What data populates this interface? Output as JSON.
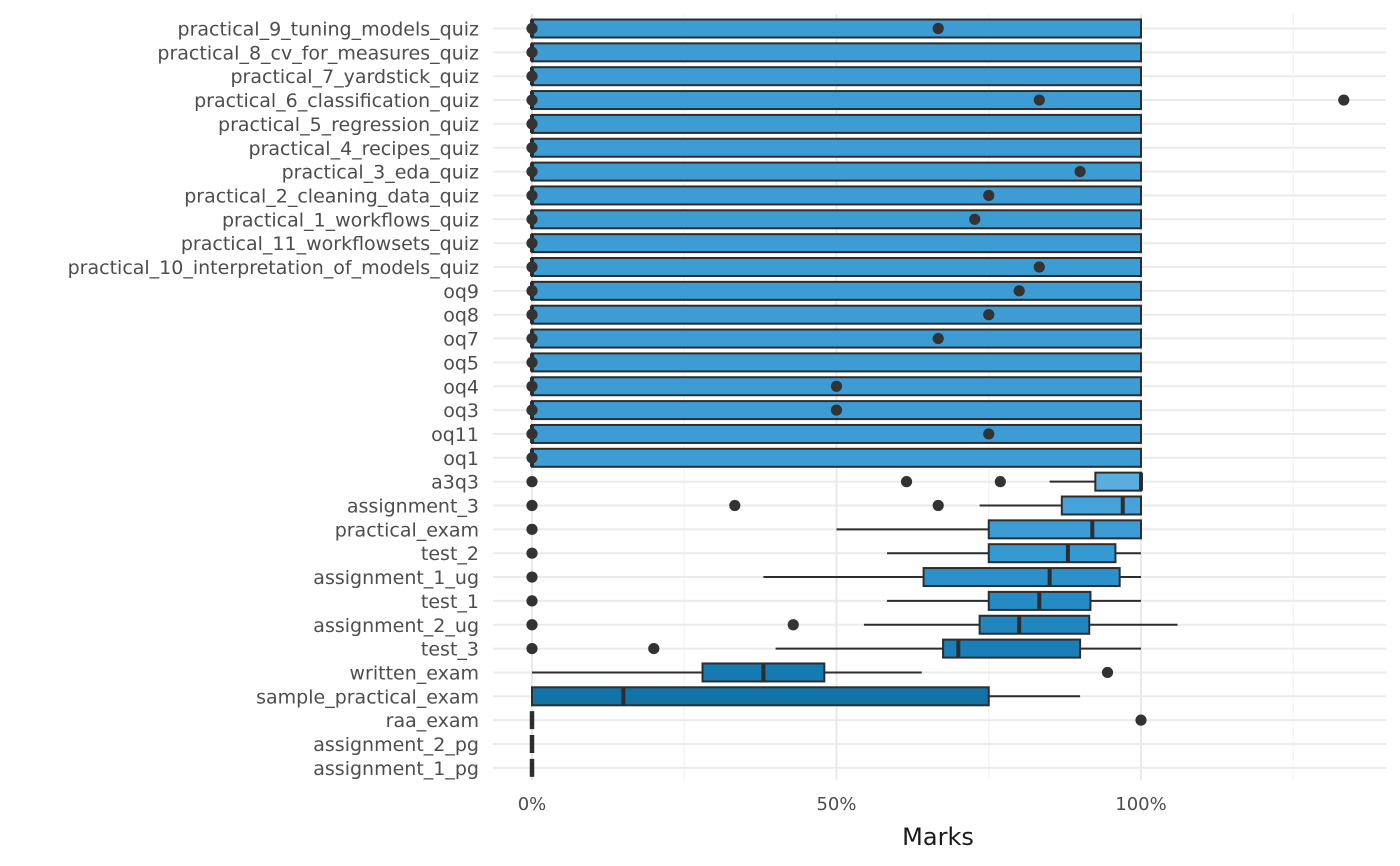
{
  "chart_data": {
    "type": "boxplot",
    "orientation": "horizontal",
    "xlabel": "Marks",
    "ylabel": "",
    "xlim": [
      -0.05,
      1.4
    ],
    "x_ticks": [
      0,
      0.5,
      1.0
    ],
    "x_tick_labels": [
      "0%",
      "50%",
      "100%"
    ],
    "grid": true,
    "colors": {
      "box_border": "#2d2d2d",
      "point": "#333333",
      "grid": "#ebebeb",
      "box_light": "#5dade2",
      "box_dark": "#1273a8"
    },
    "categories": [
      {
        "name": "practical_9_tuning_models_quiz",
        "box": [
          0,
          0,
          0,
          1.0,
          1.0
        ],
        "outliers": [
          0,
          0.667
        ]
      },
      {
        "name": "practical_8_cv_for_measures_quiz",
        "box": [
          0,
          0,
          0,
          1.0,
          1.0
        ],
        "outliers": [
          0
        ]
      },
      {
        "name": "practical_7_yardstick_quiz",
        "box": [
          0,
          0,
          0,
          1.0,
          1.0
        ],
        "outliers": [
          0
        ]
      },
      {
        "name": "practical_6_classification_quiz",
        "box": [
          0,
          0,
          0,
          1.0,
          1.0
        ],
        "outliers": [
          0,
          0.833,
          1.333
        ]
      },
      {
        "name": "practical_5_regression_quiz",
        "box": [
          0,
          0,
          0,
          1.0,
          1.0
        ],
        "outliers": [
          0
        ]
      },
      {
        "name": "practical_4_recipes_quiz",
        "box": [
          0,
          0,
          0,
          1.0,
          1.0
        ],
        "outliers": [
          0
        ]
      },
      {
        "name": "practical_3_eda_quiz",
        "box": [
          0,
          0,
          0,
          1.0,
          1.0
        ],
        "outliers": [
          0,
          0.9
        ]
      },
      {
        "name": "practical_2_cleaning_data_quiz",
        "box": [
          0,
          0,
          0,
          1.0,
          1.0
        ],
        "outliers": [
          0,
          0.75
        ]
      },
      {
        "name": "practical_1_workflows_quiz",
        "box": [
          0,
          0,
          0,
          1.0,
          1.0
        ],
        "outliers": [
          0,
          0.727
        ]
      },
      {
        "name": "practical_11_workflowsets_quiz",
        "box": [
          0,
          0,
          0,
          1.0,
          1.0
        ],
        "outliers": [
          0
        ]
      },
      {
        "name": "practical_10_interpretation_of_models_quiz",
        "box": [
          0,
          0,
          0,
          1.0,
          1.0
        ],
        "outliers": [
          0,
          0.833
        ]
      },
      {
        "name": "oq9",
        "box": [
          0,
          0,
          0,
          1.0,
          1.0
        ],
        "outliers": [
          0,
          0.8
        ]
      },
      {
        "name": "oq8",
        "box": [
          0,
          0,
          0,
          1.0,
          1.0
        ],
        "outliers": [
          0,
          0.75
        ]
      },
      {
        "name": "oq7",
        "box": [
          0,
          0,
          0,
          1.0,
          1.0
        ],
        "outliers": [
          0,
          0.667
        ]
      },
      {
        "name": "oq5",
        "box": [
          0,
          0,
          0,
          1.0,
          1.0
        ],
        "outliers": [
          0
        ]
      },
      {
        "name": "oq4",
        "box": [
          0,
          0,
          0,
          1.0,
          1.0
        ],
        "outliers": [
          0,
          0.5
        ]
      },
      {
        "name": "oq3",
        "box": [
          0,
          0,
          0,
          1.0,
          1.0
        ],
        "outliers": [
          0,
          0.5
        ]
      },
      {
        "name": "oq11",
        "box": [
          0,
          0,
          0,
          1.0,
          1.0
        ],
        "outliers": [
          0,
          0.75
        ]
      },
      {
        "name": "oq1",
        "box": [
          0,
          0,
          0,
          1.0,
          1.0
        ],
        "outliers": [
          0
        ]
      },
      {
        "name": "a3q3",
        "box": [
          0.85,
          0.925,
          1.0,
          1.0,
          1.0
        ],
        "outliers": [
          0,
          0.615,
          0.769
        ],
        "fill": "#5aaedd"
      },
      {
        "name": "assignment_3",
        "box": [
          0.735,
          0.87,
          0.97,
          1.0,
          1.0
        ],
        "outliers": [
          0,
          0.333,
          0.667
        ],
        "fill": "#46a3d9"
      },
      {
        "name": "practical_exam",
        "box": [
          0.5,
          0.75,
          0.92,
          1.0,
          1.0
        ],
        "outliers": [
          0
        ],
        "fill": "#3d9cd4"
      },
      {
        "name": "test_2",
        "box": [
          0.583,
          0.75,
          0.88,
          0.958,
          1.0
        ],
        "outliers": [
          0
        ],
        "fill": "#3599d2"
      },
      {
        "name": "assignment_1_ug",
        "box": [
          0.38,
          0.643,
          0.85,
          0.965,
          1.0
        ],
        "outliers": [
          0
        ],
        "fill": "#2c90cb"
      },
      {
        "name": "test_1",
        "box": [
          0.583,
          0.75,
          0.833,
          0.917,
          1.0
        ],
        "outliers": [
          0
        ],
        "fill": "#268bc5"
      },
      {
        "name": "assignment_2_ug",
        "box": [
          0.545,
          0.735,
          0.8,
          0.915,
          1.06
        ],
        "outliers": [
          0,
          0.429
        ],
        "fill": "#2186c0"
      },
      {
        "name": "test_3",
        "box": [
          0.4,
          0.675,
          0.7,
          0.9,
          1.0
        ],
        "outliers": [
          0,
          0.2
        ],
        "fill": "#1a7fb8"
      },
      {
        "name": "written_exam",
        "box": [
          0,
          0.28,
          0.38,
          0.48,
          0.64
        ],
        "outliers": [
          0.945
        ],
        "fill": "#1679b2"
      },
      {
        "name": "sample_practical_exam",
        "box": [
          0,
          0,
          0.15,
          0.75,
          0.9
        ],
        "outliers": [],
        "fill": "#1273a8"
      },
      {
        "name": "raa_exam",
        "box": [
          0,
          0,
          0,
          0,
          0
        ],
        "outliers": [
          1.0
        ]
      },
      {
        "name": "assignment_2_pg",
        "box": [
          0,
          0,
          0,
          0,
          0
        ],
        "outliers": []
      },
      {
        "name": "assignment_1_pg",
        "box": [
          0,
          0,
          0,
          0,
          0
        ],
        "outliers": []
      }
    ]
  }
}
